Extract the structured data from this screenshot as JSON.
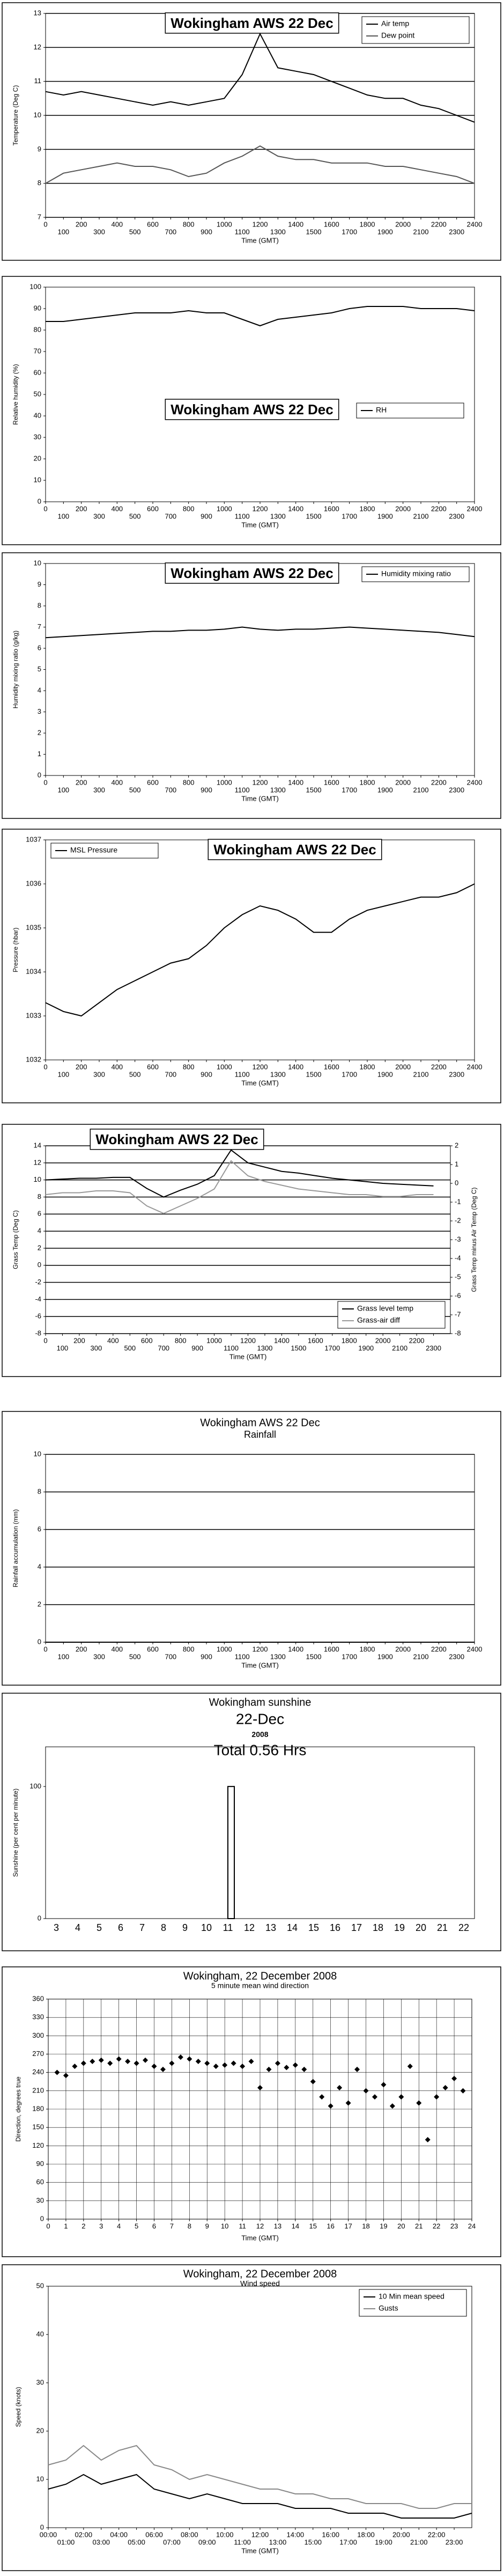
{
  "chart_data": [
    {
      "type": "line",
      "title": "Wokingham AWS 22 Dec",
      "xlabel": "Time (GMT)",
      "ylabel": "Temperature (Deg C)",
      "x": [
        0,
        100,
        200,
        300,
        400,
        500,
        600,
        700,
        800,
        900,
        1000,
        1100,
        1200,
        1300,
        1400,
        1500,
        1600,
        1700,
        1800,
        1900,
        2000,
        2100,
        2200,
        2300,
        2400
      ],
      "xlim": [
        0,
        2400
      ],
      "xticks": [
        0,
        100,
        200,
        300,
        400,
        500,
        600,
        700,
        800,
        900,
        1000,
        1100,
        1200,
        1300,
        1400,
        1500,
        1600,
        1700,
        1800,
        1900,
        2000,
        2100,
        2200,
        2300,
        2400
      ],
      "ylim": [
        7,
        13
      ],
      "yticks": [
        7,
        8,
        9,
        10,
        11,
        12,
        13
      ],
      "grid": true,
      "legend": "upper right",
      "series": [
        {
          "name": "Air temp",
          "color": "#000000",
          "values": [
            10.7,
            10.6,
            10.7,
            10.6,
            10.5,
            10.4,
            10.3,
            10.4,
            10.3,
            10.4,
            10.5,
            11.2,
            12.4,
            11.4,
            11.3,
            11.2,
            11.0,
            10.8,
            10.6,
            10.5,
            10.5,
            10.3,
            10.2,
            10.0,
            9.8
          ]
        },
        {
          "name": "Dew point",
          "color": "#555555",
          "values": [
            8.0,
            8.3,
            8.4,
            8.5,
            8.6,
            8.5,
            8.5,
            8.4,
            8.2,
            8.3,
            8.6,
            8.8,
            9.1,
            8.8,
            8.7,
            8.7,
            8.6,
            8.6,
            8.6,
            8.5,
            8.5,
            8.4,
            8.3,
            8.2,
            8.0
          ]
        }
      ]
    },
    {
      "type": "line",
      "title": "Wokingham AWS 22 Dec",
      "xlabel": "Time (GMT)",
      "ylabel": "Relative humidity (%)",
      "x": [
        0,
        100,
        200,
        300,
        400,
        500,
        600,
        700,
        800,
        900,
        1000,
        1100,
        1200,
        1300,
        1400,
        1500,
        1600,
        1700,
        1800,
        1900,
        2000,
        2100,
        2200,
        2300,
        2400
      ],
      "xlim": [
        0,
        2400
      ],
      "xticks": [
        0,
        100,
        200,
        300,
        400,
        500,
        600,
        700,
        800,
        900,
        1000,
        1100,
        1200,
        1300,
        1400,
        1500,
        1600,
        1700,
        1800,
        1900,
        2000,
        2100,
        2200,
        2300,
        2400
      ],
      "ylim": [
        0,
        100
      ],
      "yticks": [
        0,
        10,
        20,
        30,
        40,
        50,
        60,
        70,
        80,
        90,
        100
      ],
      "grid": false,
      "legend": "center",
      "series": [
        {
          "name": "RH",
          "color": "#000000",
          "values": [
            84,
            84,
            85,
            86,
            87,
            88,
            88,
            88,
            89,
            88,
            88,
            85,
            82,
            85,
            86,
            87,
            88,
            90,
            91,
            91,
            91,
            90,
            90,
            90,
            89
          ]
        }
      ]
    },
    {
      "type": "line",
      "title": "Wokingham AWS 22 Dec",
      "xlabel": "Time (GMT)",
      "ylabel": "Humidity mixing ratio (g/kg)",
      "x": [
        0,
        100,
        200,
        300,
        400,
        500,
        600,
        700,
        800,
        900,
        1000,
        1100,
        1200,
        1300,
        1400,
        1500,
        1600,
        1700,
        1800,
        1900,
        2000,
        2100,
        2200,
        2300,
        2400
      ],
      "xlim": [
        0,
        2400
      ],
      "xticks": [
        0,
        100,
        200,
        300,
        400,
        500,
        600,
        700,
        800,
        900,
        1000,
        1100,
        1200,
        1300,
        1400,
        1500,
        1600,
        1700,
        1800,
        1900,
        2000,
        2100,
        2200,
        2300,
        2400
      ],
      "ylim": [
        0,
        10
      ],
      "yticks": [
        0,
        1,
        2,
        3,
        4,
        5,
        6,
        7,
        8,
        9,
        10
      ],
      "grid": false,
      "legend": "upper right",
      "series": [
        {
          "name": "Humidity mixing ratio",
          "color": "#000000",
          "values": [
            6.5,
            6.55,
            6.6,
            6.65,
            6.7,
            6.75,
            6.8,
            6.8,
            6.85,
            6.85,
            6.9,
            7.0,
            6.9,
            6.85,
            6.9,
            6.9,
            6.95,
            7.0,
            6.95,
            6.9,
            6.85,
            6.8,
            6.75,
            6.65,
            6.55
          ]
        }
      ]
    },
    {
      "type": "line",
      "title": "Wokingham AWS 22 Dec",
      "xlabel": "Time (GMT)",
      "ylabel": "Pressure (hbar)",
      "x": [
        0,
        100,
        200,
        300,
        400,
        500,
        600,
        700,
        800,
        900,
        1000,
        1100,
        1200,
        1300,
        1400,
        1500,
        1600,
        1700,
        1800,
        1900,
        2000,
        2100,
        2200,
        2300,
        2400
      ],
      "xlim": [
        0,
        2400
      ],
      "xticks": [
        0,
        100,
        200,
        300,
        400,
        500,
        600,
        700,
        800,
        900,
        1000,
        1100,
        1200,
        1300,
        1400,
        1500,
        1600,
        1700,
        1800,
        1900,
        2000,
        2100,
        2200,
        2300,
        2400
      ],
      "ylim": [
        1032,
        1037
      ],
      "yticks": [
        1032,
        1033,
        1034,
        1035,
        1036,
        1037
      ],
      "grid": false,
      "legend": "upper left",
      "series": [
        {
          "name": "MSL Pressure",
          "color": "#000000",
          "values": [
            1033.3,
            1033.1,
            1033.0,
            1033.3,
            1033.6,
            1033.8,
            1034.0,
            1034.2,
            1034.3,
            1034.6,
            1035.0,
            1035.3,
            1035.5,
            1035.4,
            1035.2,
            1034.9,
            1034.9,
            1035.2,
            1035.4,
            1035.5,
            1035.6,
            1035.7,
            1035.7,
            1035.8,
            1036.0
          ]
        }
      ]
    },
    {
      "type": "line",
      "title": "Wokingham AWS 22 Dec",
      "xlabel": "Time (GMT)",
      "ylabel": "Grass Temp (Deg C)",
      "y2label": "Grass Temp minus Air Temp (Deg C)",
      "x": [
        0,
        100,
        200,
        300,
        400,
        500,
        600,
        700,
        800,
        900,
        1000,
        1100,
        1200,
        1300,
        1400,
        1500,
        1600,
        1700,
        1800,
        1900,
        2000,
        2100,
        2200,
        2300
      ],
      "xlim": [
        0,
        2400
      ],
      "xticks": [
        0,
        100,
        200,
        300,
        400,
        500,
        600,
        700,
        800,
        900,
        1000,
        1100,
        1200,
        1300,
        1400,
        1500,
        1600,
        1700,
        1800,
        1900,
        2000,
        2100,
        2200,
        2300
      ],
      "ylim": [
        -8,
        14
      ],
      "yticks": [
        -8,
        -6,
        -4,
        -2,
        0,
        2,
        4,
        6,
        8,
        10,
        12,
        14
      ],
      "y2lim": [
        -8,
        2
      ],
      "y2ticks": [
        -8,
        -7,
        -6,
        -5,
        -4,
        -3,
        -2,
        -1,
        0,
        1,
        2
      ],
      "grid": true,
      "legend": "lower right",
      "series": [
        {
          "name": "Grass level temp",
          "color": "#000000",
          "values": [
            10.0,
            10.1,
            10.2,
            10.2,
            10.3,
            10.3,
            9.0,
            8.0,
            8.8,
            9.5,
            10.5,
            13.5,
            12.0,
            11.5,
            11.0,
            10.8,
            10.5,
            10.2,
            10.0,
            9.8,
            9.6,
            9.5,
            9.4,
            9.3
          ]
        },
        {
          "name": "Grass-air diff",
          "color": "#999999",
          "axis": "y2",
          "values": [
            -0.6,
            -0.5,
            -0.5,
            -0.4,
            -0.4,
            -0.5,
            -1.2,
            -1.6,
            -1.2,
            -0.8,
            -0.3,
            1.2,
            0.4,
            0.1,
            -0.1,
            -0.3,
            -0.4,
            -0.5,
            -0.6,
            -0.6,
            -0.7,
            -0.7,
            -0.6,
            -0.6
          ]
        }
      ]
    },
    {
      "type": "line",
      "title": "Wokingham AWS 22 Dec",
      "xlabel": "Time (GMT)",
      "ylabel": "Rainfall accumulation (mm)",
      "x": [
        0,
        100,
        200,
        300,
        400,
        500,
        600,
        700,
        800,
        900,
        1000,
        1100,
        1200,
        1300,
        1400,
        1500,
        1600,
        1700,
        1800,
        1900,
        2000,
        2100,
        2200,
        2300,
        2400
      ],
      "xlim": [
        0,
        2400
      ],
      "xticks": [
        0,
        100,
        200,
        300,
        400,
        500,
        600,
        700,
        800,
        900,
        1000,
        1100,
        1200,
        1300,
        1400,
        1500,
        1600,
        1700,
        1800,
        1900,
        2000,
        2100,
        2200,
        2300,
        2400
      ],
      "ylim": [
        0,
        10
      ],
      "yticks": [
        0,
        2,
        4,
        6,
        8,
        10
      ],
      "grid": true,
      "legend": "top",
      "series": [
        {
          "name": "Rainfall",
          "color": "#000000",
          "values": [
            0,
            0,
            0,
            0,
            0,
            0,
            0,
            0,
            0,
            0,
            0,
            0,
            0,
            0,
            0,
            0,
            0,
            0,
            0,
            0,
            0,
            0,
            0,
            0,
            0
          ]
        }
      ]
    },
    {
      "type": "bar",
      "title": "Wokingham sunshine",
      "subtitle": "22-Dec",
      "annotations": [
        "2008",
        "Total 0.56 Hrs"
      ],
      "ylabel": "Sunshine (per cent per minute)",
      "categories": [
        "3",
        "4",
        "5",
        "6",
        "7",
        "8",
        "9",
        "10",
        "11",
        "12",
        "13",
        "14",
        "15",
        "16",
        "17",
        "18",
        "19",
        "20",
        "21",
        "22"
      ],
      "values": [
        null,
        null,
        null,
        null,
        null,
        null,
        null,
        null,
        100,
        null,
        null,
        null,
        null,
        null,
        null,
        null,
        null,
        null,
        null,
        null
      ],
      "color": "#ffffff",
      "ylim": [
        0,
        130
      ],
      "yticks": [
        0,
        100
      ],
      "grid": false
    },
    {
      "type": "scatter",
      "title": "Wokingham,  22 December 2008",
      "subtitle": "5 minute mean wind direction",
      "xlabel": "Time (GMT)",
      "ylabel": "Direction, degrees true",
      "xlim": [
        0,
        24
      ],
      "xticks": [
        0,
        1,
        2,
        3,
        4,
        5,
        6,
        7,
        8,
        9,
        10,
        11,
        12,
        13,
        14,
        15,
        16,
        17,
        18,
        19,
        20,
        21,
        22,
        23,
        24
      ],
      "ylim": [
        0,
        360
      ],
      "yticks": [
        0,
        30,
        60,
        90,
        120,
        150,
        180,
        210,
        240,
        270,
        300,
        330,
        360
      ],
      "grid": "both",
      "series": [
        {
          "color": "#000000",
          "x": [
            0.5,
            1,
            1.5,
            2,
            2.5,
            3,
            3.5,
            4,
            4.5,
            5,
            5.5,
            6,
            6.5,
            7,
            7.5,
            8,
            8.5,
            9,
            9.5,
            10,
            10.5,
            11,
            11.5,
            12,
            12.5,
            13,
            13.5,
            14,
            14.5,
            15,
            15.5,
            16,
            16.5,
            17,
            17.5,
            18,
            18.5,
            19,
            19.5,
            20,
            20.5,
            21,
            21.5,
            22,
            22.5,
            23,
            23.5
          ],
          "values": [
            240,
            235,
            250,
            255,
            258,
            260,
            255,
            262,
            258,
            255,
            260,
            250,
            245,
            255,
            265,
            262,
            258,
            255,
            250,
            252,
            255,
            250,
            258,
            215,
            245,
            255,
            248,
            252,
            245,
            225,
            200,
            185,
            215,
            190,
            245,
            210,
            200,
            220,
            185,
            200,
            250,
            190,
            130,
            200,
            215,
            230,
            210
          ]
        }
      ]
    },
    {
      "type": "line",
      "title": "Wokingham,  22 December 2008",
      "subtitle": "Wind speed",
      "xlabel": "Time (GMT)",
      "ylabel": "Speed (knots)",
      "x": [
        0,
        1,
        2,
        3,
        4,
        5,
        6,
        7,
        8,
        9,
        10,
        11,
        12,
        13,
        14,
        15,
        16,
        17,
        18,
        19,
        20,
        21,
        22,
        23,
        24
      ],
      "xlim": [
        0,
        24
      ],
      "xticks": [
        {
          "value": 0,
          "label": "00:00"
        },
        {
          "value": 1,
          "label": "01:00"
        },
        {
          "value": 2,
          "label": "02:00"
        },
        {
          "value": 3,
          "label": "03:00"
        },
        {
          "value": 4,
          "label": "04:00"
        },
        {
          "value": 5,
          "label": "05:00"
        },
        {
          "value": 6,
          "label": "06:00"
        },
        {
          "value": 7,
          "label": "07:00"
        },
        {
          "value": 8,
          "label": "08:00"
        },
        {
          "value": 9,
          "label": "09:00"
        },
        {
          "value": 10,
          "label": "10:00"
        },
        {
          "value": 11,
          "label": "11:00"
        },
        {
          "value": 12,
          "label": "12:00"
        },
        {
          "value": 13,
          "label": "13:00"
        },
        {
          "value": 14,
          "label": "14:00"
        },
        {
          "value": 15,
          "label": "15:00"
        },
        {
          "value": 16,
          "label": "16:00"
        },
        {
          "value": 17,
          "label": "17:00"
        },
        {
          "value": 18,
          "label": "18:00"
        },
        {
          "value": 19,
          "label": "19:00"
        },
        {
          "value": 20,
          "label": "20:00"
        },
        {
          "value": 21,
          "label": "21:00"
        },
        {
          "value": 22,
          "label": "22:00"
        },
        {
          "value": 23,
          "label": "23:00"
        }
      ],
      "ylim": [
        0,
        50
      ],
      "yticks": [
        0,
        10,
        20,
        30,
        40,
        50
      ],
      "grid": false,
      "legend": "upper right",
      "series": [
        {
          "name": "10 Min mean speed",
          "color": "#000000",
          "values": [
            8,
            9,
            11,
            9,
            10,
            11,
            8,
            7,
            6,
            7,
            6,
            5,
            5,
            5,
            4,
            4,
            4,
            3,
            3,
            3,
            2,
            2,
            2,
            2,
            3
          ]
        },
        {
          "name": "Gusts",
          "color": "#888888",
          "values": [
            13,
            14,
            17,
            14,
            16,
            17,
            13,
            12,
            10,
            11,
            10,
            9,
            8,
            8,
            7,
            7,
            6,
            6,
            5,
            5,
            5,
            4,
            4,
            5,
            5
          ]
        }
      ]
    }
  ]
}
